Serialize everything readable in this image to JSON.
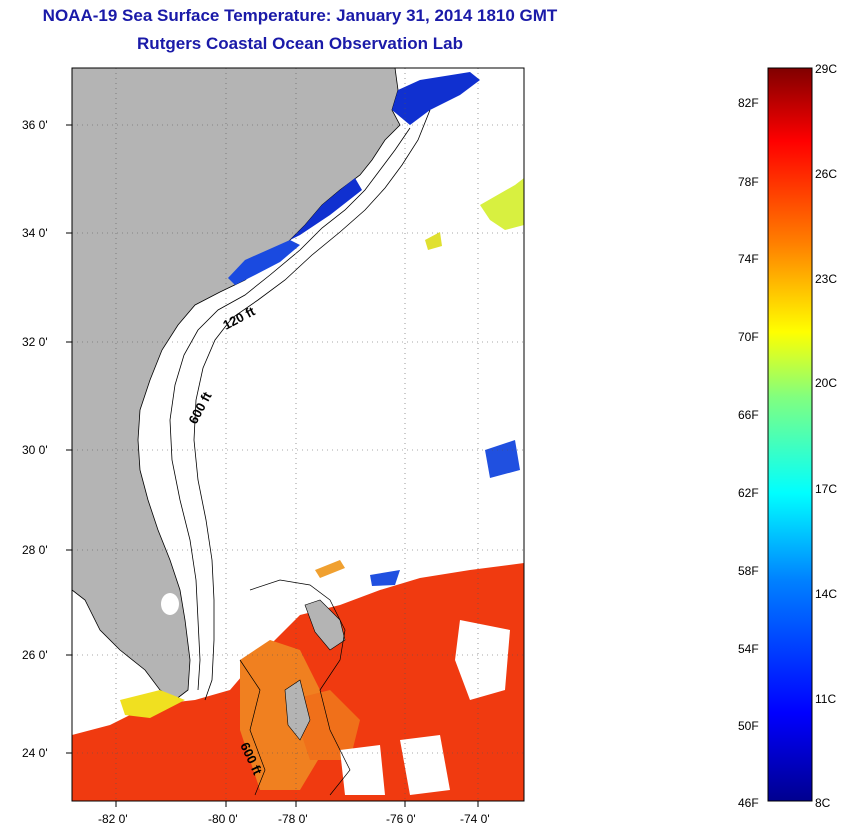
{
  "header": {
    "title": "NOAA-19 Sea Surface Temperature:  January 31, 2014 1810 GMT",
    "subtitle": "Rutgers Coastal Ocean Observation Lab"
  },
  "map": {
    "lat_labels": [
      "36 0'",
      "34 0'",
      "32 0'",
      "30 0'",
      "28 0'",
      "26 0'",
      "24 0'"
    ],
    "lon_labels": [
      "-82 0'",
      "-80 0'",
      "-78 0'",
      "-76 0'",
      "-74 0'"
    ],
    "contour_labels": [
      "120 ft",
      "600 ft",
      "600 ft"
    ],
    "land_color": "#b4b4b4",
    "grid": true
  },
  "colorbar": {
    "fahrenheit_labels": [
      "82F",
      "78F",
      "74F",
      "70F",
      "66F",
      "62F",
      "58F",
      "54F",
      "50F",
      "46F"
    ],
    "celsius_labels": [
      "29C",
      "26C",
      "23C",
      "20C",
      "17C",
      "14C",
      "11C",
      "8C"
    ],
    "range_c": [
      8,
      29
    ],
    "scale_colors": [
      "#00008f",
      "#0000ff",
      "#0080ff",
      "#00ffff",
      "#80ff80",
      "#ffff00",
      "#ff8000",
      "#ff0000",
      "#800000"
    ]
  }
}
